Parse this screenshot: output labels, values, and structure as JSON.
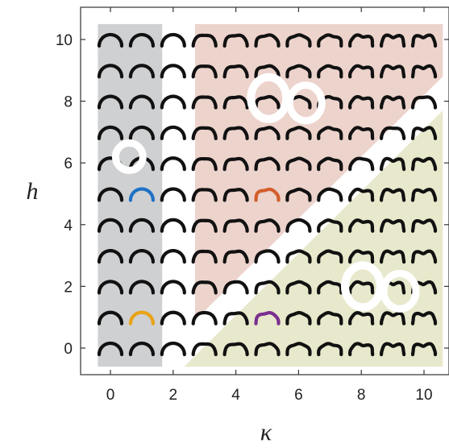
{
  "chart_data": {
    "type": "scatter",
    "xlabel": "κ",
    "ylabel": "h",
    "xlim": [
      -0.7,
      11
    ],
    "ylim": [
      -0.9,
      11
    ],
    "x_ticks": [
      0,
      2,
      4,
      6,
      8,
      10
    ],
    "y_ticks": [
      0,
      2,
      4,
      6,
      8,
      10
    ],
    "x_tick_labels": [
      "0",
      "2",
      "4",
      "6",
      "8",
      "10"
    ],
    "y_tick_labels": [
      "0",
      "2",
      "4",
      "6",
      "8",
      "10"
    ],
    "grid": false,
    "legend": "none",
    "kappa_values": [
      0,
      1,
      2,
      3,
      4,
      5,
      6,
      7,
      8,
      9,
      10
    ],
    "h_values": [
      0,
      1,
      2,
      3,
      4,
      5,
      6,
      7,
      8,
      9,
      10
    ],
    "regions": [
      {
        "name": "gray",
        "color": "#cfd0d2",
        "kappa_range": [
          -0.4,
          1.65
        ],
        "h_range": [
          -0.6,
          10.5
        ]
      },
      {
        "name": "pink",
        "color": "#ecd3cc",
        "kappa_range": [
          2.7,
          10.6
        ],
        "h_range": [
          0.9,
          10.5
        ],
        "lower_edge": [
          [
            2.7,
            0.9
          ],
          [
            10.6,
            8.8
          ]
        ]
      },
      {
        "name": "olive",
        "color": "#e8e8cc",
        "upper_edge": [
          [
            2.35,
            -0.6
          ],
          [
            10.6,
            7.7
          ]
        ],
        "h_range": [
          -0.6,
          7.7
        ]
      }
    ],
    "highlighted_points": [
      {
        "kappa": 1,
        "h": 5,
        "color": "#1f72c4"
      },
      {
        "kappa": 1,
        "h": 1,
        "color": "#e8a317"
      },
      {
        "kappa": 5,
        "h": 5,
        "color": "#d35e2b"
      },
      {
        "kappa": 5,
        "h": 1,
        "color": "#7a2f8f"
      }
    ],
    "glyph_color": "#111111",
    "ring_markers": [
      {
        "kappa": 0.6,
        "h": 6.2,
        "shape": "ring"
      },
      {
        "kappa": 5.2,
        "h": 8.1,
        "shape": "double-ring"
      },
      {
        "kappa": 8.2,
        "h": 2.0,
        "shape": "double-ring"
      }
    ]
  }
}
